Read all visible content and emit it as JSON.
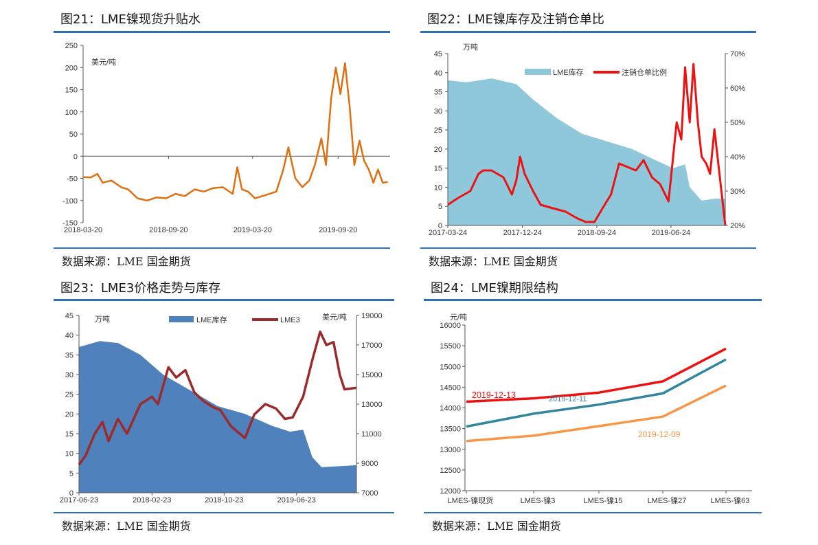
{
  "colors": {
    "rule": "#2f6fb3",
    "orange": "#e06f10",
    "red": "#ee1111",
    "lightblue": "#8ec8da",
    "blue": "#4f81bd",
    "darkred": "#9b2b2b",
    "teal": "#31859c",
    "lightorange": "#f79646"
  },
  "charts": [
    {
      "title": "图21：LME镍现货升贴水",
      "source": "数据来源：LME 国金期货",
      "chart_data": {
        "type": "line",
        "unit_label": "美元/吨",
        "ylim": [
          -150,
          250
        ],
        "yticks": [
          "250",
          "200",
          "150",
          "100",
          "50",
          "0",
          "-50",
          "-100",
          "-150"
        ],
        "xticks": [
          "2018-03-20",
          "2018-09-20",
          "2019-03-20",
          "2019-09-20"
        ],
        "xrange": [
          "2018-03-20",
          "2020-01-10"
        ],
        "series": [
          {
            "color": "#e06f10",
            "points": [
              [
                "2018-03-20",
                -47
              ],
              [
                "2018-04-05",
                -48
              ],
              [
                "2018-04-20",
                -40
              ],
              [
                "2018-05-01",
                -60
              ],
              [
                "2018-05-20",
                -55
              ],
              [
                "2018-06-10",
                -70
              ],
              [
                "2018-06-25",
                -75
              ],
              [
                "2018-07-15",
                -95
              ],
              [
                "2018-08-05",
                -100
              ],
              [
                "2018-08-25",
                -93
              ],
              [
                "2018-09-15",
                -95
              ],
              [
                "2018-10-05",
                -85
              ],
              [
                "2018-10-25",
                -90
              ],
              [
                "2018-11-15",
                -75
              ],
              [
                "2018-12-05",
                -80
              ],
              [
                "2018-12-25",
                -72
              ],
              [
                "2019-01-15",
                -70
              ],
              [
                "2019-02-05",
                -85
              ],
              [
                "2019-02-15",
                -25
              ],
              [
                "2019-02-25",
                -75
              ],
              [
                "2019-03-10",
                -80
              ],
              [
                "2019-03-25",
                -95
              ],
              [
                "2019-04-10",
                -90
              ],
              [
                "2019-04-25",
                -85
              ],
              [
                "2019-05-10",
                -80
              ],
              [
                "2019-05-25",
                -30
              ],
              [
                "2019-06-05",
                20
              ],
              [
                "2019-06-20",
                -50
              ],
              [
                "2019-07-05",
                -70
              ],
              [
                "2019-07-20",
                -55
              ],
              [
                "2019-08-01",
                -20
              ],
              [
                "2019-08-15",
                40
              ],
              [
                "2019-08-25",
                -20
              ],
              [
                "2019-09-05",
                130
              ],
              [
                "2019-09-15",
                200
              ],
              [
                "2019-09-25",
                140
              ],
              [
                "2019-10-05",
                210
              ],
              [
                "2019-10-15",
                110
              ],
              [
                "2019-10-25",
                -20
              ],
              [
                "2019-11-05",
                35
              ],
              [
                "2019-11-15",
                -10
              ],
              [
                "2019-11-25",
                -30
              ],
              [
                "2019-12-05",
                -60
              ],
              [
                "2019-12-15",
                -30
              ],
              [
                "2019-12-25",
                -60
              ],
              [
                "2020-01-05",
                -58
              ]
            ]
          }
        ]
      }
    },
    {
      "title": "图22：LME镍库存及注销仓单比",
      "source": "数据来源：LME 国金期货",
      "chart_data": {
        "type": "area",
        "unit_label": "万吨",
        "ylim": [
          0,
          45
        ],
        "yticks": [
          "45",
          "40",
          "35",
          "30",
          "25",
          "20",
          "15",
          "10",
          "5",
          "0"
        ],
        "y2lim": [
          20,
          70
        ],
        "y2ticks": [
          "70%",
          "60%",
          "50%",
          "40%",
          "30%",
          "20%"
        ],
        "xticks": [
          "2017-03-24",
          "2017-12-24",
          "2018-09-24",
          "2019-06-24"
        ],
        "xrange": [
          "2017-03-24",
          "2020-01-10"
        ],
        "series": [
          {
            "name": "LME库存",
            "axis": "left",
            "kind": "area",
            "color": "#8ec8da",
            "points": [
              [
                "2017-03-24",
                38
              ],
              [
                "2017-06-01",
                37.5
              ],
              [
                "2017-09-01",
                38.5
              ],
              [
                "2017-12-01",
                37
              ],
              [
                "2018-02-01",
                33
              ],
              [
                "2018-05-01",
                28
              ],
              [
                "2018-08-01",
                24
              ],
              [
                "2018-11-01",
                22
              ],
              [
                "2019-02-01",
                20
              ],
              [
                "2019-05-01",
                17
              ],
              [
                "2019-07-01",
                15
              ],
              [
                "2019-08-15",
                16
              ],
              [
                "2019-09-01",
                10
              ],
              [
                "2019-10-15",
                6.5
              ],
              [
                "2019-12-01",
                7
              ],
              [
                "2020-01-10",
                7
              ]
            ]
          },
          {
            "name": "注销仓单比例",
            "axis": "right",
            "kind": "line",
            "color": "#ee1111",
            "points": [
              [
                "2017-03-24",
                26
              ],
              [
                "2017-05-01",
                28
              ],
              [
                "2017-06-15",
                30
              ],
              [
                "2017-07-15",
                35
              ],
              [
                "2017-08-01",
                36
              ],
              [
                "2017-09-01",
                36
              ],
              [
                "2017-10-15",
                34
              ],
              [
                "2017-11-15",
                29
              ],
              [
                "2017-12-01",
                33
              ],
              [
                "2017-12-15",
                40
              ],
              [
                "2018-01-01",
                35
              ],
              [
                "2018-02-01",
                30
              ],
              [
                "2018-03-01",
                26
              ],
              [
                "2018-04-15",
                25
              ],
              [
                "2018-06-01",
                24
              ],
              [
                "2018-07-15",
                22
              ],
              [
                "2018-08-15",
                21
              ],
              [
                "2018-09-15",
                21
              ],
              [
                "2018-10-15",
                25
              ],
              [
                "2018-11-15",
                29
              ],
              [
                "2018-12-15",
                38
              ],
              [
                "2019-01-15",
                37
              ],
              [
                "2019-02-15",
                36
              ],
              [
                "2019-03-15",
                39
              ],
              [
                "2019-04-15",
                34
              ],
              [
                "2019-05-15",
                32
              ],
              [
                "2019-06-15",
                27
              ],
              [
                "2019-07-15",
                50
              ],
              [
                "2019-08-01",
                45
              ],
              [
                "2019-08-15",
                66
              ],
              [
                "2019-09-01",
                50
              ],
              [
                "2019-09-15",
                67
              ],
              [
                "2019-10-01",
                50
              ],
              [
                "2019-10-15",
                40
              ],
              [
                "2019-11-01",
                38
              ],
              [
                "2019-11-15",
                35
              ],
              [
                "2019-12-01",
                48
              ],
              [
                "2020-01-10",
                20
              ]
            ]
          }
        ]
      }
    },
    {
      "title": "图23：LME3价格走势与库存",
      "source": "数据来源：LME 国金期货",
      "chart_data": {
        "type": "area",
        "unit_label": "万吨",
        "unit_label_right": "美元/吨",
        "ylim": [
          0,
          45
        ],
        "yticks": [
          "45",
          "40",
          "35",
          "30",
          "25",
          "20",
          "15",
          "10",
          "5",
          "0"
        ],
        "y2lim": [
          7000,
          19000
        ],
        "y2ticks": [
          "19000",
          "17000",
          "15000",
          "13000",
          "11000",
          "9000",
          "7000"
        ],
        "xticks": [
          "2017-06-23",
          "2018-02-23",
          "2018-10-23",
          "2019-06-23"
        ],
        "xrange": [
          "2017-06-23",
          "2020-01-10"
        ],
        "series": [
          {
            "name": "LME库存",
            "axis": "left",
            "kind": "area",
            "color": "#4f81bd",
            "points": [
              [
                "2017-06-23",
                37
              ],
              [
                "2017-09-01",
                38.5
              ],
              [
                "2017-11-01",
                38
              ],
              [
                "2018-01-15",
                35
              ],
              [
                "2018-04-01",
                30
              ],
              [
                "2018-07-01",
                26
              ],
              [
                "2018-10-01",
                22
              ],
              [
                "2019-01-01",
                20
              ],
              [
                "2019-04-01",
                17
              ],
              [
                "2019-06-01",
                15.5
              ],
              [
                "2019-07-15",
                16
              ],
              [
                "2019-08-15",
                9
              ],
              [
                "2019-09-15",
                6.5
              ],
              [
                "2020-01-10",
                7
              ]
            ]
          },
          {
            "name": "LME3",
            "axis": "right",
            "kind": "line",
            "color": "#9b2b2b",
            "points": [
              [
                "2017-06-23",
                8900
              ],
              [
                "2017-07-15",
                9500
              ],
              [
                "2017-08-15",
                11000
              ],
              [
                "2017-09-10",
                11800
              ],
              [
                "2017-09-30",
                10500
              ],
              [
                "2017-11-01",
                12000
              ],
              [
                "2017-12-01",
                11000
              ],
              [
                "2018-01-15",
                13000
              ],
              [
                "2018-02-23",
                13500
              ],
              [
                "2018-03-15",
                13000
              ],
              [
                "2018-04-19",
                15500
              ],
              [
                "2018-05-15",
                14800
              ],
              [
                "2018-06-15",
                15300
              ],
              [
                "2018-07-15",
                13800
              ],
              [
                "2018-08-15",
                13200
              ],
              [
                "2018-09-15",
                12800
              ],
              [
                "2018-10-10",
                12600
              ],
              [
                "2018-11-15",
                11500
              ],
              [
                "2019-01-01",
                10700
              ],
              [
                "2019-02-01",
                12300
              ],
              [
                "2019-03-10",
                13000
              ],
              [
                "2019-04-15",
                12700
              ],
              [
                "2019-05-15",
                12000
              ],
              [
                "2019-06-10",
                12100
              ],
              [
                "2019-07-15",
                13500
              ],
              [
                "2019-08-15",
                16000
              ],
              [
                "2019-09-10",
                17900
              ],
              [
                "2019-10-01",
                17000
              ],
              [
                "2019-10-25",
                17200
              ],
              [
                "2019-11-15",
                15000
              ],
              [
                "2019-12-01",
                14000
              ],
              [
                "2020-01-10",
                14100
              ]
            ]
          }
        ]
      }
    },
    {
      "title": "图24：LME镍期限结构",
      "source": "数据来源：LME 国金期货",
      "chart_data": {
        "type": "line",
        "unit_label": "元/吨",
        "ylim": [
          12000,
          16000
        ],
        "yticks": [
          "16000",
          "15500",
          "15000",
          "14500",
          "14000",
          "13500",
          "13000",
          "12500",
          "12000"
        ],
        "categories": [
          "LMES-镍现货",
          "LMES-镍3",
          "LMES-镍15",
          "LMES-镍27",
          "LMES-镍63"
        ],
        "series": [
          {
            "name": "2019-12-13",
            "color": "#ee1111",
            "values": [
              14150,
              14230,
              14370,
              14640,
              15430
            ]
          },
          {
            "name": "2019-12-11",
            "color": "#31859c",
            "values": [
              13550,
              13860,
              14080,
              14350,
              15170
            ]
          },
          {
            "name": "2019-12-09",
            "color": "#f79646",
            "values": [
              13200,
              13330,
              13560,
              13790,
              14540
            ]
          }
        ]
      }
    }
  ]
}
